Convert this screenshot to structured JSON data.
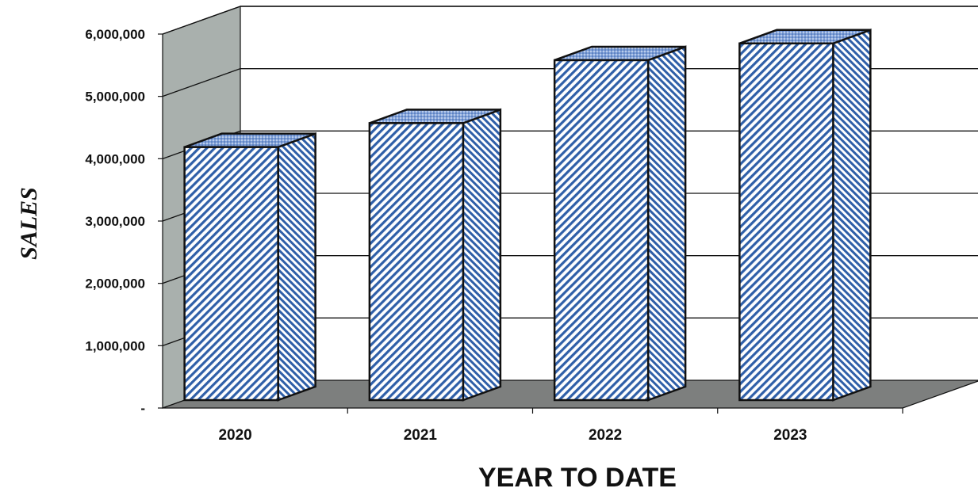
{
  "chart_data": {
    "type": "bar",
    "categories": [
      "2020",
      "2021",
      "2022",
      "2023"
    ],
    "values": [
      4220000,
      4620000,
      5670000,
      5950000
    ],
    "title": "",
    "xlabel": "YEAR TO DATE",
    "ylabel": "SALES",
    "ylim": [
      0,
      6000000
    ],
    "yticks": [
      0,
      1000000,
      2000000,
      3000000,
      4000000,
      5000000,
      6000000
    ],
    "ytick_labels": [
      "-",
      "1,000,000",
      "2,000,000",
      "3,000,000",
      "4,000,000",
      "5,000,000",
      "6,000,000"
    ],
    "grid": true,
    "legend": "none",
    "colors": {
      "bar_stripe": "#2f5fa8",
      "bar_top": "#7fa0d8",
      "left_wall": "#a9b0ad",
      "floor": "#7d7f7e",
      "outline": "#111111"
    }
  }
}
